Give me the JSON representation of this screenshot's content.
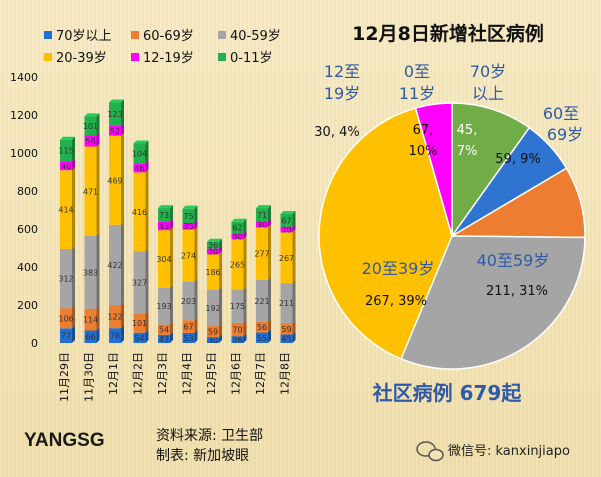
{
  "chart_data": [
    {
      "type": "bar",
      "stacked": true,
      "categories": [
        "11月29日",
        "11月30日",
        "12月1日",
        "12月2日",
        "12月3日",
        "12月4日",
        "12月5日",
        "12月6日",
        "12月7日",
        "12月8日"
      ],
      "ylim": [
        0,
        1400
      ],
      "yticks": [
        0,
        200,
        400,
        600,
        800,
        1000,
        1200,
        1400
      ],
      "series": [
        {
          "name": "70岁以上",
          "color": "#1f6fd6",
          "values": [
            77,
            66,
            78,
            54,
            43,
            53,
            30,
            36,
            55,
            45
          ]
        },
        {
          "name": "60-69岁",
          "color": "#ed7d31",
          "values": [
            106,
            114,
            122,
            101,
            54,
            67,
            59,
            70,
            56,
            59
          ]
        },
        {
          "name": "40-59岁",
          "color": "#a5a5a5",
          "values": [
            312,
            383,
            422,
            327,
            193,
            203,
            192,
            175,
            221,
            211
          ]
        },
        {
          "name": "20-39岁",
          "color": "#ffc000",
          "values": [
            414,
            471,
            469,
            416,
            304,
            274,
            186,
            265,
            277,
            267
          ]
        },
        {
          "name": "12-19岁",
          "color": "#ff00ff",
          "values": [
            46,
            58,
            52,
            48,
            43,
            35,
            30,
            30,
            30,
            30
          ]
        },
        {
          "name": "0-11岁",
          "color": "#22b14c",
          "values": [
            115,
            101,
            123,
            104,
            73,
            75,
            36,
            62,
            71,
            67
          ]
        }
      ]
    },
    {
      "type": "pie",
      "title": "12月8日新增社区病例",
      "total_label": "社区病例 679起",
      "slices": [
        {
          "name": "0至11岁",
          "value": 67,
          "percent": "10%",
          "color": "#70ad47",
          "value_label": "67,",
          "percent_label": "10%"
        },
        {
          "name": "70岁以上",
          "value": 45,
          "percent": "7%",
          "color": "#2f74d0",
          "value_label": "45,",
          "percent_label": "7%"
        },
        {
          "name": "60至69岁",
          "value": 59,
          "percent": "9%",
          "color": "#ed7d31",
          "value_label": "59, 9%"
        },
        {
          "name": "40至59岁",
          "value": 211,
          "percent": "31%",
          "color": "#a5a5a5",
          "value_label": "211, 31%"
        },
        {
          "name": "20至39岁",
          "value": 267,
          "percent": "39%",
          "color": "#ffc000",
          "value_label": "267, 39%"
        },
        {
          "name": "12至19岁",
          "value": 30,
          "percent": "4%",
          "color": "#ff00ff",
          "value_label": "30, 4%"
        }
      ]
    }
  ],
  "pie_text": {
    "label_12_19_line1": "12至",
    "label_12_19_line2": "19岁",
    "label_0_11_line1": "0至",
    "label_0_11_line2": "11岁",
    "label_70_line1": "70岁",
    "label_70_line2": "以上",
    "label_60_line1": "60至",
    "label_60_line2": "69岁",
    "label_40_59": "40至59岁",
    "label_20_39": "20至39岁"
  },
  "footer": {
    "logo_text": "YANGSG",
    "source_line": "资料来源:  卫生部",
    "maker_line": "制表:  新加坡眼",
    "wechat": "微信号: kanxinjiapo"
  }
}
